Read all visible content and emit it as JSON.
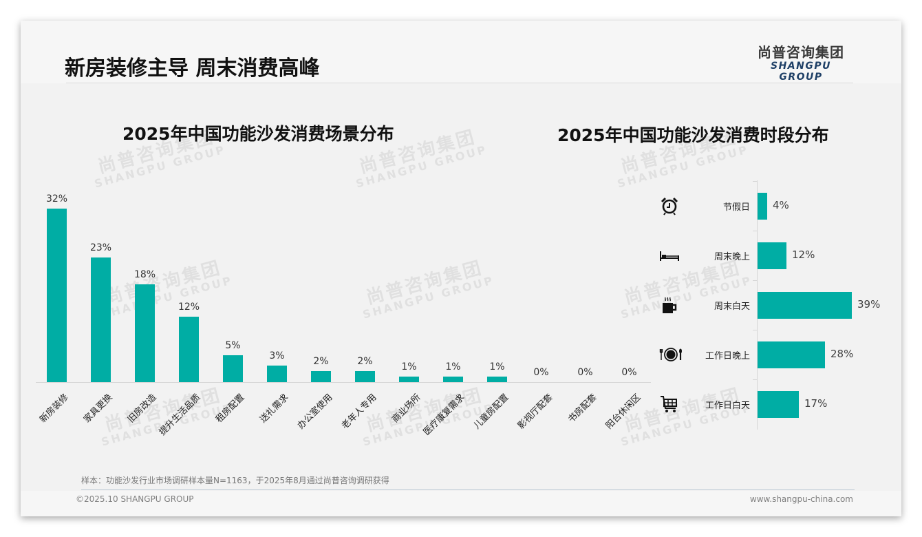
{
  "header": {
    "title": "新房装修主导 周末消费高峰",
    "logo_cn": "尚普咨询集团",
    "logo_en": "SHANGPU GROUP"
  },
  "watermark": {
    "cn": "尚普咨询集团",
    "en": "SHANGPU GROUP"
  },
  "colors": {
    "bar": "#00ada4",
    "logo_en": "#1e3f66",
    "text": "#111111"
  },
  "chart_data": [
    {
      "type": "bar",
      "title": "2025年中国功能沙发消费场景分布",
      "xlabel": "",
      "ylabel": "",
      "categories": [
        "新房装修",
        "家具更换",
        "旧房改造",
        "提升生活品质",
        "租房配置",
        "送礼需求",
        "办公室使用",
        "老年人专用",
        "商业场所",
        "医疗康复需求",
        "儿童房配置",
        "影视厅配套",
        "书房配套",
        "阳台休闲区"
      ],
      "values": [
        32,
        23,
        18,
        12,
        5,
        3,
        2,
        2,
        1,
        1,
        1,
        0,
        0,
        0
      ],
      "value_labels": [
        "32%",
        "23%",
        "18%",
        "12%",
        "5%",
        "3%",
        "2%",
        "2%",
        "1%",
        "1%",
        "1%",
        "0%",
        "0%",
        "0%"
      ],
      "unit": "%",
      "grid": false,
      "legend": "none"
    },
    {
      "type": "bar",
      "orientation": "horizontal",
      "title": "2025年中国功能沙发消费时段分布",
      "categories": [
        "节假日",
        "周末晚上",
        "周末白天",
        "工作日晚上",
        "工作日白天"
      ],
      "values": [
        4,
        12,
        39,
        28,
        17
      ],
      "value_labels": [
        "4%",
        "12%",
        "39%",
        "28%",
        "17%"
      ],
      "icons": [
        "alarm-clock-icon",
        "bed-icon",
        "hot-coffee-icon",
        "plate-cutlery-icon",
        "shopping-cart-icon"
      ],
      "unit": "%",
      "grid": false,
      "legend": "none"
    }
  ],
  "footer": {
    "sample_note": "样本：功能沙发行业市场调研样本量N=1163，于2025年8月通过尚普咨询调研获得",
    "copyright": "©2025.10 SHANGPU GROUP",
    "website": "www.shangpu-china.com"
  }
}
